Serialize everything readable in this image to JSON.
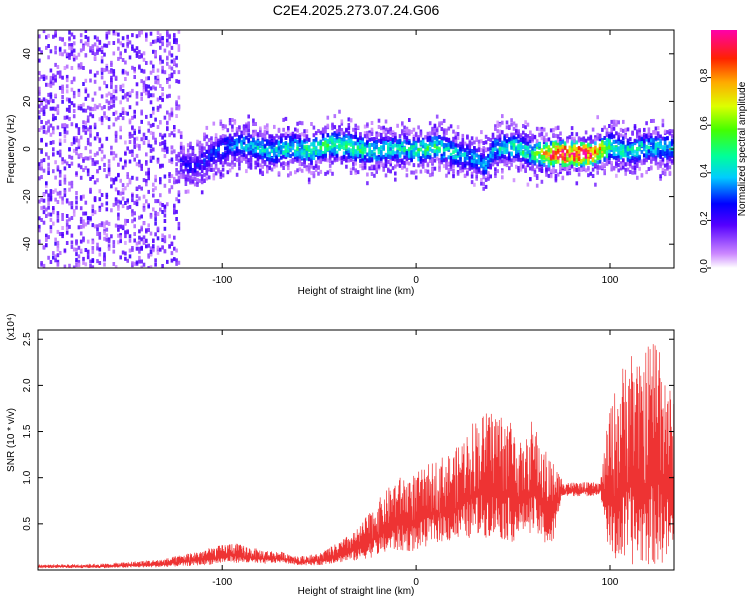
{
  "title": "C2E4.2025.273.07.24.G06",
  "chart_data": [
    {
      "type": "heatmap",
      "xlabel": "Height of straight line (km)",
      "ylabel": "Frequency (Hz)",
      "xlim": [
        -195,
        133
      ],
      "ylim": [
        -50,
        50
      ],
      "xticks": [
        -100,
        0,
        100
      ],
      "yticks": [
        -40,
        -20,
        0,
        20,
        40
      ],
      "colorbar": {
        "label": "Normalized spectral amplitude",
        "range": [
          0,
          1
        ],
        "ticks": [
          0.0,
          0.2,
          0.4,
          0.6,
          0.8
        ]
      },
      "ridge": {
        "x": [
          -195,
          -180,
          -160,
          -140,
          -125,
          -115,
          -105,
          -95,
          -85,
          -75,
          -65,
          -55,
          -45,
          -35,
          -25,
          -15,
          -5,
          0,
          10,
          20,
          30,
          35,
          40,
          50,
          60,
          70,
          80,
          90,
          100,
          110,
          120,
          133
        ],
        "center_freq": [
          0,
          0,
          0,
          0,
          -5,
          -8,
          -2,
          2,
          1,
          -1,
          1,
          -1,
          2,
          1,
          -1,
          0,
          0,
          -1,
          1,
          -2,
          -4,
          -7,
          0,
          1,
          -2,
          -2,
          -2,
          -2,
          1,
          -1,
          1,
          0
        ],
        "amplitude": [
          0.18,
          0.18,
          0.18,
          0.2,
          0.22,
          0.25,
          0.3,
          0.36,
          0.38,
          0.42,
          0.45,
          0.47,
          0.5,
          0.5,
          0.47,
          0.42,
          0.44,
          0.5,
          0.48,
          0.42,
          0.35,
          0.35,
          0.4,
          0.46,
          0.48,
          0.9,
          0.95,
          0.95,
          0.5,
          0.45,
          0.42,
          0.38
        ]
      }
    },
    {
      "type": "line",
      "xlabel": "Height of straight line (km)",
      "ylabel": "SNR (10 * v/v)",
      "y_multiplier": "(x10⁴)",
      "xlim": [
        -195,
        133
      ],
      "ylim": [
        0,
        2.6
      ],
      "xticks": [
        -100,
        0,
        100
      ],
      "yticks": [
        0.5,
        1.0,
        1.5,
        2.0,
        2.5
      ],
      "color": "#ee3333",
      "envelope": {
        "x": [
          -195,
          -160,
          -130,
          -110,
          -95,
          -80,
          -70,
          -60,
          -50,
          -40,
          -30,
          -20,
          -10,
          0,
          10,
          20,
          30,
          40,
          50,
          55,
          60,
          65,
          70,
          75,
          80,
          90,
          95,
          100,
          105,
          110,
          115,
          120,
          125,
          133
        ],
        "low": [
          0.02,
          0.02,
          0.03,
          0.05,
          0.08,
          0.06,
          0.08,
          0.05,
          0.05,
          0.08,
          0.1,
          0.15,
          0.2,
          0.2,
          0.3,
          0.3,
          0.35,
          0.35,
          0.3,
          0.4,
          0.4,
          0.3,
          0.2,
          0.78,
          0.8,
          0.8,
          0.82,
          0.1,
          0.05,
          0.05,
          0.05,
          0.05,
          0.05,
          0.1
        ],
        "high": [
          0.06,
          0.07,
          0.12,
          0.22,
          0.3,
          0.22,
          0.2,
          0.15,
          0.18,
          0.3,
          0.45,
          0.75,
          1.0,
          1.05,
          1.2,
          1.3,
          1.65,
          1.75,
          1.65,
          1.3,
          1.65,
          1.35,
          1.2,
          1.0,
          0.95,
          0.95,
          0.95,
          1.8,
          2.1,
          2.5,
          2.2,
          2.5,
          2.6,
          1.8
        ]
      }
    }
  ]
}
